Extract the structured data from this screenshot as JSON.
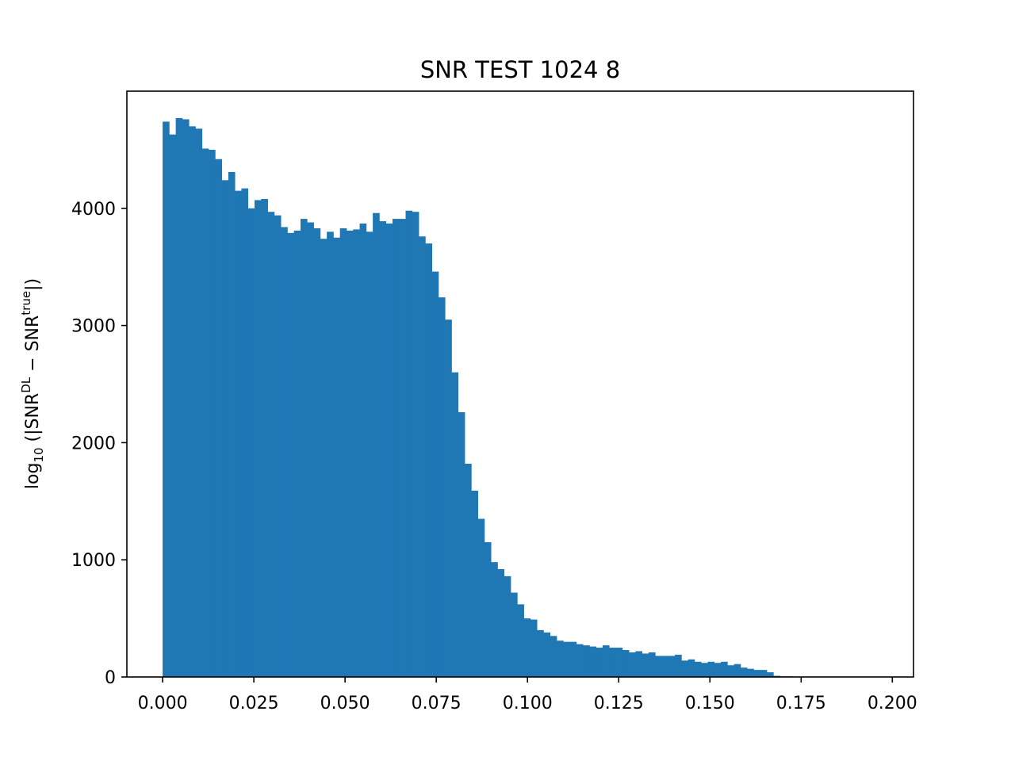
{
  "chart_data": {
    "type": "bar",
    "title": "SNR TEST 1024 8",
    "xlabel": "",
    "ylabel": {
      "prefix": "log",
      "prefix_sub": "10",
      "open": " (|SNR",
      "sup1": "DL",
      "middle": " − SNR",
      "sup2": "true",
      "close": "|)"
    },
    "xlim": [
      -0.0098,
      0.2058
    ],
    "ylim": [
      0,
      5000
    ],
    "xticks": [
      0.0,
      0.025,
      0.05,
      0.075,
      0.1,
      0.125,
      0.15,
      0.175,
      0.2
    ],
    "xtick_labels": [
      "0.000",
      "0.025",
      "0.050",
      "0.075",
      "0.100",
      "0.125",
      "0.150",
      "0.175",
      "0.200"
    ],
    "yticks": [
      0,
      1000,
      2000,
      3000,
      4000
    ],
    "ytick_labels": [
      "0",
      "1000",
      "2000",
      "3000",
      "4000"
    ],
    "bar_color": "#1f77b4",
    "bins": {
      "start": 0.0,
      "width": 0.0018,
      "values": [
        4740,
        4630,
        4770,
        4760,
        4700,
        4680,
        4510,
        4500,
        4420,
        4240,
        4310,
        4150,
        4170,
        4000,
        4070,
        4080,
        3970,
        3940,
        3840,
        3790,
        3810,
        3910,
        3880,
        3830,
        3740,
        3800,
        3750,
        3830,
        3810,
        3820,
        3870,
        3800,
        3960,
        3890,
        3870,
        3910,
        3910,
        3980,
        3970,
        3760,
        3700,
        3460,
        3240,
        3050,
        2600,
        2260,
        1820,
        1590,
        1350,
        1150,
        980,
        920,
        860,
        720,
        620,
        500,
        490,
        400,
        380,
        350,
        310,
        300,
        300,
        280,
        270,
        260,
        250,
        270,
        250,
        250,
        230,
        210,
        220,
        200,
        210,
        180,
        180,
        180,
        190,
        140,
        150,
        130,
        120,
        130,
        120,
        130,
        100,
        110,
        80,
        70,
        60,
        60,
        40,
        10,
        5,
        5,
        3,
        1,
        1,
        1
      ]
    }
  }
}
